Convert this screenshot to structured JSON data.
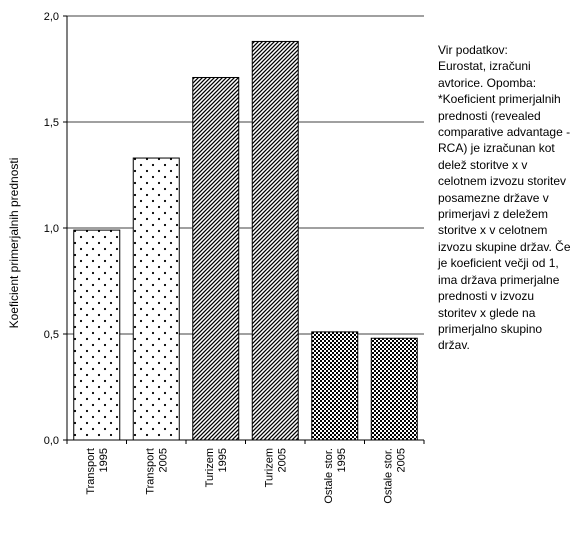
{
  "chart_data": {
    "type": "bar",
    "title": "",
    "xlabel": "",
    "ylabel": "Koeficient primerjalnih prednosti",
    "ylim": [
      0,
      2
    ],
    "yticks": [
      "0,0",
      "0,5",
      "1,0",
      "1,5",
      "2,0"
    ],
    "ytick_values": [
      0,
      0.5,
      1.0,
      1.5,
      2.0
    ],
    "grid": true,
    "categories": [
      [
        "Transport",
        "1995"
      ],
      [
        "Transport",
        "2005"
      ],
      [
        "Turizem",
        "1995"
      ],
      [
        "Turizem",
        "2005"
      ],
      [
        "Ostale stor.",
        "1995"
      ],
      [
        "Ostale stor.",
        "2005"
      ]
    ],
    "values": [
      0.99,
      1.33,
      1.71,
      1.88,
      0.51,
      0.48
    ],
    "patterns": [
      "dots",
      "dots",
      "diagonal-stripes",
      "diagonal-stripes",
      "checker",
      "checker"
    ]
  },
  "note": "Vir podatkov:\nEurostat, izračuni avtorice. Opomba: *Koeficient primerjalnih prednosti (revealed comparative advantage - RCA) je izračunan kot delež storitve x v celotnem izvozu storitev posamezne države v primerjavi z deležem storitve x v celotnem izvozu skupine držav. Če je koeficient večji od 1, ima država primerjalne prednosti v izvozu storitev x glede na primerjalno skupino držav."
}
